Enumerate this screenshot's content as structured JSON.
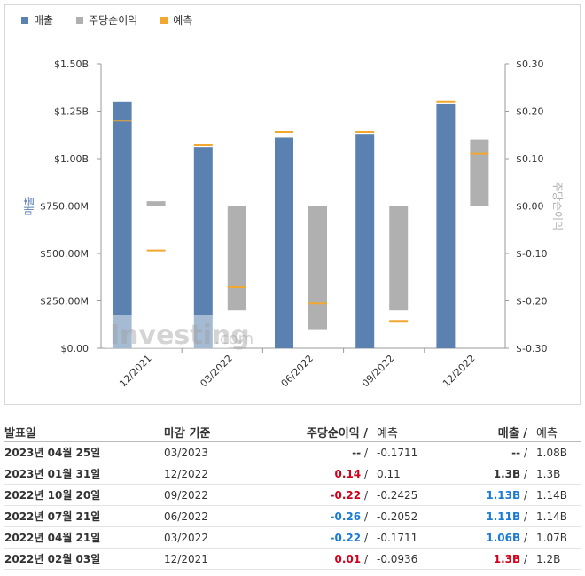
{
  "legend": {
    "revenue": "매출",
    "eps": "주당순이익",
    "forecast": "예측"
  },
  "colors": {
    "revenue": "#5b81b0",
    "eps": "#b0b0b0",
    "forecast": "#f0a830",
    "positive": "#d0021b",
    "negative": "#1a7bd6"
  },
  "watermark": {
    "brand": "Investing",
    "suffix": ".com"
  },
  "chart_data": {
    "type": "bar",
    "categories": [
      "12/2021",
      "03/2022",
      "06/2022",
      "09/2022",
      "12/2022"
    ],
    "left_axis": {
      "label": "매출",
      "min": 0,
      "max": 1.5,
      "ticks": [
        0,
        0.25,
        0.5,
        0.75,
        1.0,
        1.25,
        1.5
      ],
      "tick_labels": [
        "$0.00",
        "$250.00M",
        "$500.00M",
        "$750.00M",
        "$1.00B",
        "$1.25B",
        "$1.50B"
      ]
    },
    "right_axis": {
      "label": "주당순이익",
      "min": -0.3,
      "max": 0.3,
      "ticks": [
        -0.3,
        -0.2,
        -0.1,
        0,
        0.1,
        0.2,
        0.3
      ],
      "tick_labels": [
        "$-0.30",
        "$-0.20",
        "$-0.10",
        "$0.00",
        "$0.10",
        "$0.20",
        "$0.30"
      ]
    },
    "series": [
      {
        "name": "매출",
        "axis": "left",
        "values": [
          1.3,
          1.06,
          1.11,
          1.13,
          1.29
        ]
      },
      {
        "name": "매출 예측",
        "axis": "left",
        "values": [
          1.2,
          1.07,
          1.14,
          1.14,
          1.3
        ]
      },
      {
        "name": "주당순이익",
        "axis": "right",
        "values": [
          0.01,
          -0.22,
          -0.26,
          -0.22,
          0.14
        ]
      },
      {
        "name": "주당순이익 예측",
        "axis": "right",
        "values": [
          -0.0936,
          -0.1711,
          -0.2052,
          -0.2425,
          0.11
        ]
      }
    ]
  },
  "table": {
    "headers": {
      "date": "발표일",
      "period": "마감 기준",
      "eps": "주당순이익",
      "eps_forecast": "예측",
      "revenue": "매출",
      "revenue_forecast": "예측",
      "sep": "/"
    },
    "rows": [
      {
        "date": "2023년 04월 25일",
        "period": "03/2023",
        "eps": "--",
        "eps_color": "plain",
        "eps_forecast": "-0.1711",
        "revenue": "--",
        "revenue_color": "plain",
        "revenue_forecast": "1.08B"
      },
      {
        "date": "2023년 01월 31일",
        "period": "12/2022",
        "eps": "0.14",
        "eps_color": "red",
        "eps_forecast": "0.11",
        "revenue": "1.3B",
        "revenue_color": "plain",
        "revenue_forecast": "1.3B"
      },
      {
        "date": "2022년 10월 20일",
        "period": "09/2022",
        "eps": "-0.22",
        "eps_color": "red",
        "eps_forecast": "-0.2425",
        "revenue": "1.13B",
        "revenue_color": "blue",
        "revenue_forecast": "1.14B"
      },
      {
        "date": "2022년 07월 21일",
        "period": "06/2022",
        "eps": "-0.26",
        "eps_color": "blue",
        "eps_forecast": "-0.2052",
        "revenue": "1.11B",
        "revenue_color": "blue",
        "revenue_forecast": "1.14B"
      },
      {
        "date": "2022년 04월 21일",
        "period": "03/2022",
        "eps": "-0.22",
        "eps_color": "blue",
        "eps_forecast": "-0.1711",
        "revenue": "1.06B",
        "revenue_color": "blue",
        "revenue_forecast": "1.07B"
      },
      {
        "date": "2022년 02월 03일",
        "period": "12/2021",
        "eps": "0.01",
        "eps_color": "red",
        "eps_forecast": "-0.0936",
        "revenue": "1.3B",
        "revenue_color": "red",
        "revenue_forecast": "1.2B"
      }
    ]
  }
}
